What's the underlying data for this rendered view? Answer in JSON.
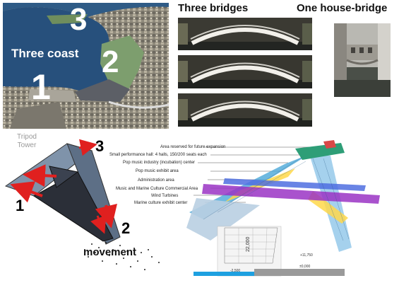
{
  "aerial": {
    "zone_1": "1",
    "zone_2": "2",
    "zone_3": "3",
    "caption": "Three coast"
  },
  "bridges_section": {
    "title": "Three bridges"
  },
  "house_section": {
    "title": "One house-bridge"
  },
  "tripod_diagram": {
    "tower_label": "Tripod\nTower",
    "leg_1": "1",
    "leg_2": "2",
    "leg_3": "3",
    "movement_label": "movement"
  },
  "program_labels": [
    "Area reserved for future expansion",
    "Small performance hall: 4 halls, 150/200 seats each",
    "Pop music industry (incubation) center",
    "Pop music exhibit area",
    "Administration area",
    "Music and Marine Culture Commercial Area",
    "Wind Turbines",
    "Marine culture exhibit center"
  ],
  "section_dims": {
    "height": "22,000",
    "level_top": "+11,750",
    "level_zero": "±0,000",
    "water_level": "-2,500"
  },
  "colors": {
    "water": "#1f4a78",
    "park": "#7d9e6e",
    "sea_strip": "#1ea0e0",
    "ground_strip": "#9a9a9a"
  }
}
